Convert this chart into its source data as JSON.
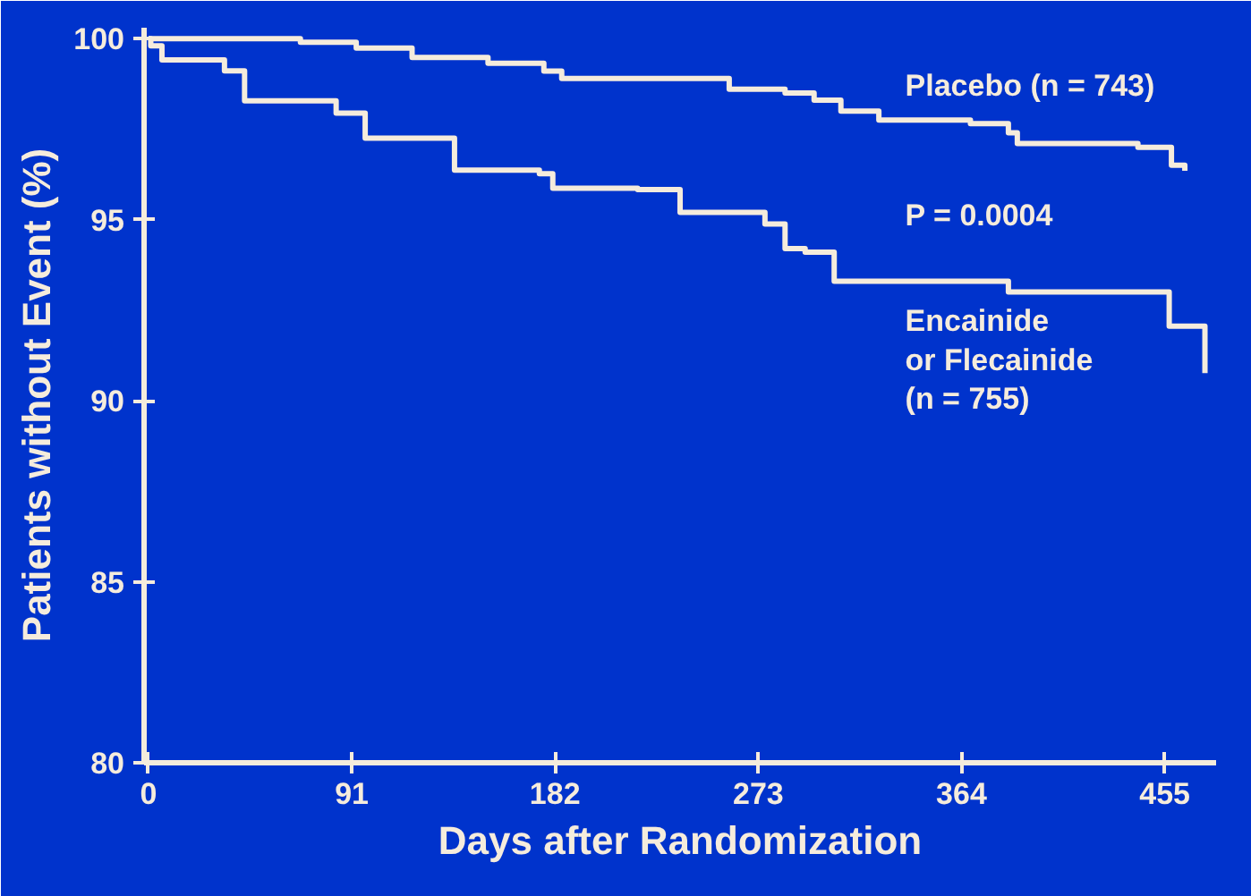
{
  "chart_data": {
    "type": "step",
    "xlabel": "Days after Randomization",
    "ylabel": "Patients without Event (%)",
    "xlim": [
      -2,
      478
    ],
    "ylim": [
      80,
      100.3
    ],
    "xticks": [
      0,
      91,
      182,
      273,
      364,
      455
    ],
    "yticks": [
      80,
      85,
      90,
      95,
      100
    ],
    "grid": false,
    "marker": "none",
    "line_style": "solid",
    "annotations": [
      "P = 0.0004"
    ],
    "series": [
      {
        "name": "Placebo (n = 743)",
        "color": "#f5ecdc",
        "x": [
          0,
          68,
          93,
          118,
          152,
          177,
          185,
          260,
          285,
          298,
          310,
          327,
          368,
          385,
          389,
          443,
          458,
          464
        ],
        "values": [
          100,
          99.9,
          99.74,
          99.48,
          99.32,
          99.1,
          98.9,
          98.6,
          98.5,
          98.3,
          98.0,
          97.75,
          97.65,
          97.4,
          97.1,
          97.0,
          96.5,
          96.35
        ]
      },
      {
        "name": "Encainide\nor Flecainide\n(n = 755)",
        "color": "#f5ecdc",
        "x": [
          0,
          1,
          6,
          34,
          43,
          84,
          97,
          137,
          175,
          181,
          219,
          238,
          276,
          285,
          294,
          307,
          385,
          457,
          465,
          473
        ],
        "values": [
          100,
          99.8,
          99.41,
          99.11,
          98.28,
          97.94,
          97.25,
          96.37,
          96.27,
          95.87,
          95.83,
          95.2,
          94.88,
          94.2,
          94.1,
          93.3,
          93.0,
          92.06,
          92.06,
          90.76
        ]
      }
    ]
  }
}
